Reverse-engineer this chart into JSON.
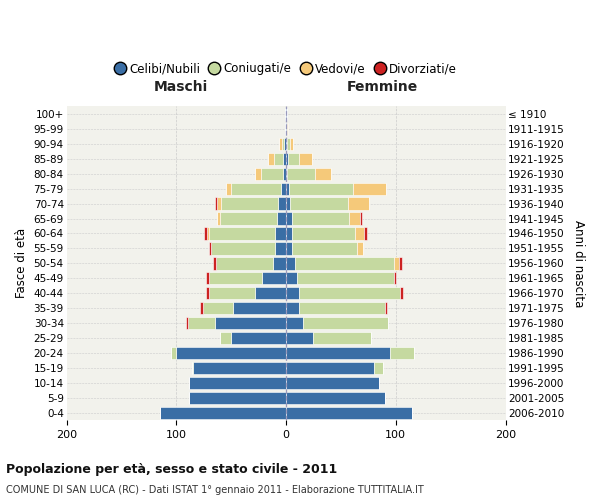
{
  "age_groups": [
    "100+",
    "95-99",
    "90-94",
    "85-89",
    "80-84",
    "75-79",
    "70-74",
    "65-69",
    "60-64",
    "55-59",
    "50-54",
    "45-49",
    "40-44",
    "35-39",
    "30-34",
    "25-29",
    "20-24",
    "15-19",
    "10-14",
    "5-9",
    "0-4"
  ],
  "birth_years": [
    "≤ 1910",
    "1911-1915",
    "1916-1920",
    "1921-1925",
    "1926-1930",
    "1931-1935",
    "1936-1940",
    "1941-1945",
    "1946-1950",
    "1951-1955",
    "1956-1960",
    "1961-1965",
    "1966-1970",
    "1971-1975",
    "1976-1980",
    "1981-1985",
    "1986-1990",
    "1991-1995",
    "1996-2000",
    "2001-2005",
    "2006-2010"
  ],
  "colors": {
    "celibi": "#3a6ea5",
    "coniugati": "#c5d9a0",
    "vedovi": "#f5c97a",
    "divorziati": "#cc2222"
  },
  "maschi_celibi": [
    1,
    1,
    2,
    3,
    3,
    5,
    7,
    8,
    10,
    10,
    12,
    22,
    28,
    48,
    65,
    50,
    100,
    85,
    88,
    88,
    115
  ],
  "maschi_coniugati": [
    0,
    0,
    2,
    8,
    20,
    45,
    52,
    52,
    60,
    58,
    52,
    48,
    42,
    28,
    24,
    10,
    5,
    1,
    0,
    0,
    0
  ],
  "maschi_vedovi": [
    0,
    0,
    2,
    5,
    5,
    5,
    4,
    3,
    2,
    0,
    0,
    0,
    0,
    0,
    0,
    0,
    0,
    0,
    0,
    0,
    0
  ],
  "maschi_divorziati": [
    0,
    0,
    0,
    0,
    0,
    0,
    2,
    0,
    3,
    2,
    3,
    3,
    3,
    2,
    2,
    0,
    0,
    0,
    0,
    0,
    0
  ],
  "femmine_celibi": [
    1,
    1,
    1,
    2,
    1,
    3,
    4,
    5,
    5,
    5,
    8,
    10,
    12,
    12,
    15,
    25,
    95,
    80,
    85,
    90,
    115
  ],
  "femmine_coniugati": [
    0,
    0,
    3,
    10,
    25,
    58,
    52,
    52,
    58,
    60,
    90,
    88,
    92,
    78,
    78,
    52,
    22,
    8,
    0,
    0,
    0
  ],
  "femmine_vedovi": [
    0,
    1,
    2,
    12,
    15,
    30,
    20,
    10,
    8,
    5,
    5,
    0,
    0,
    0,
    0,
    0,
    0,
    0,
    0,
    0,
    0
  ],
  "femmine_divorziati": [
    0,
    0,
    0,
    0,
    0,
    0,
    0,
    2,
    3,
    0,
    3,
    2,
    3,
    2,
    0,
    0,
    0,
    0,
    0,
    0,
    0
  ],
  "title_bold": "Popolazione per età, sesso e stato civile - 2011",
  "subtitle": "COMUNE DI SAN LUCA (RC) - Dati ISTAT 1° gennaio 2011 - Elaborazione TUTTITALIA.IT",
  "maschi_label": "Maschi",
  "femmine_label": "Femmine",
  "ylabel_left": "Fasce di età",
  "ylabel_right": "Anni di nascita",
  "xlim": 200,
  "bg_axes": "#f2f2ec",
  "legend_labels": [
    "Celibi/Nubili",
    "Coniugati/e",
    "Vedovi/e",
    "Divorziati/e"
  ]
}
